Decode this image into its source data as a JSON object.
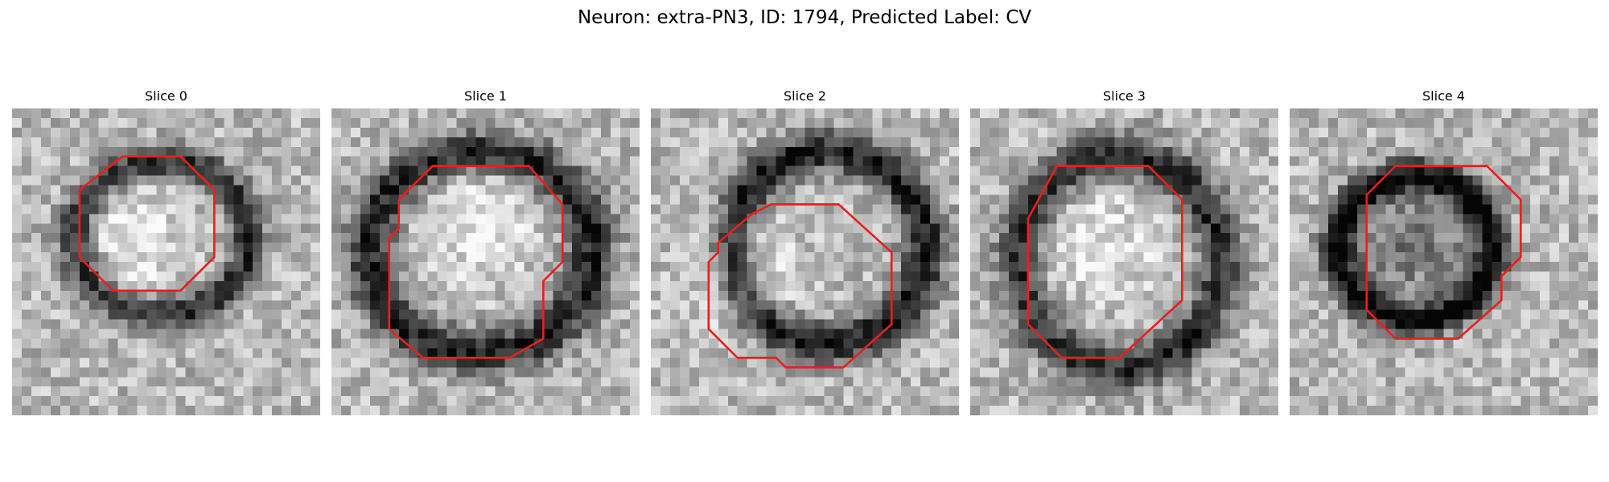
{
  "figure": {
    "title": "Neuron: extra-PN3, ID: 1794, Predicted Label: CV"
  },
  "contour_color": "#e8201c",
  "panels": [
    {
      "label": "Slice 0",
      "seed": 11,
      "dark_ring": {
        "cx": 15.5,
        "cy": 13.5,
        "rx": 9.0,
        "ry": 8.0,
        "strength": 0.55
      },
      "core": {
        "cx": 13.0,
        "cy": 13.5,
        "r": 5.5,
        "brightness": 0.18
      },
      "contour": [
        [
          11.5,
          5
        ],
        [
          17.5,
          5
        ],
        [
          21,
          8.5
        ],
        [
          21,
          15.5
        ],
        [
          17.5,
          19
        ],
        [
          10.5,
          19
        ],
        [
          7,
          15.5
        ],
        [
          7,
          8.5
        ]
      ]
    },
    {
      "label": "Slice 1",
      "seed": 23,
      "dark_ring": {
        "cx": 15.5,
        "cy": 15.0,
        "rx": 11.5,
        "ry": 10.5,
        "strength": 0.6
      },
      "core": {
        "cx": 15.0,
        "cy": 11.5,
        "r": 6.5,
        "brightness": 0.2
      },
      "contour": [
        [
          10.5,
          6
        ],
        [
          20.5,
          6
        ],
        [
          24,
          10
        ],
        [
          24,
          16
        ],
        [
          22,
          18
        ],
        [
          22,
          24
        ],
        [
          18.5,
          26
        ],
        [
          9.5,
          26
        ],
        [
          6,
          23
        ],
        [
          6,
          13.5
        ],
        [
          7,
          12.5
        ],
        [
          7,
          9.5
        ]
      ]
    },
    {
      "label": "Slice 2",
      "seed": 37,
      "dark_ring": {
        "cx": 18.5,
        "cy": 14.5,
        "rx": 10.0,
        "ry": 10.0,
        "strength": 0.62
      },
      "core": {
        "cx": 10.0,
        "cy": 17.0,
        "r": 5.5,
        "brightness": 0.2
      },
      "contour": [
        [
          12.5,
          10
        ],
        [
          19.5,
          10
        ],
        [
          25,
          15
        ],
        [
          25,
          22.5
        ],
        [
          20,
          27
        ],
        [
          14,
          27
        ],
        [
          13,
          26
        ],
        [
          9,
          26
        ],
        [
          6,
          23
        ],
        [
          6,
          16
        ],
        [
          7,
          15
        ],
        [
          7,
          14
        ],
        [
          10.5,
          11
        ]
      ]
    },
    {
      "label": "Slice 3",
      "seed": 41,
      "dark_ring": {
        "cx": 15.5,
        "cy": 16.0,
        "rx": 10.5,
        "ry": 11.0,
        "strength": 0.55
      },
      "core": {
        "cx": 13.5,
        "cy": 14.0,
        "r": 6.0,
        "brightness": 0.18
      },
      "contour": [
        [
          9,
          6
        ],
        [
          18.5,
          6
        ],
        [
          22,
          9.5
        ],
        [
          22,
          20
        ],
        [
          15.5,
          26
        ],
        [
          9.5,
          26
        ],
        [
          6,
          22.5
        ],
        [
          6,
          11.5
        ]
      ]
    },
    {
      "label": "Slice 4",
      "seed": 53,
      "dark_ring": {
        "cx": 13.0,
        "cy": 14.5,
        "rx": 8.0,
        "ry": 7.5,
        "strength": 0.7
      },
      "core": {
        "cx": 13.0,
        "cy": 14.0,
        "r": 6.5,
        "brightness": -0.25
      },
      "contour": [
        [
          11,
          6
        ],
        [
          20.5,
          6
        ],
        [
          24,
          9.5
        ],
        [
          24,
          15.5
        ],
        [
          22,
          17.5
        ],
        [
          22,
          20
        ],
        [
          17.5,
          24
        ],
        [
          11,
          24
        ],
        [
          8,
          21
        ],
        [
          8,
          9
        ]
      ]
    }
  ]
}
